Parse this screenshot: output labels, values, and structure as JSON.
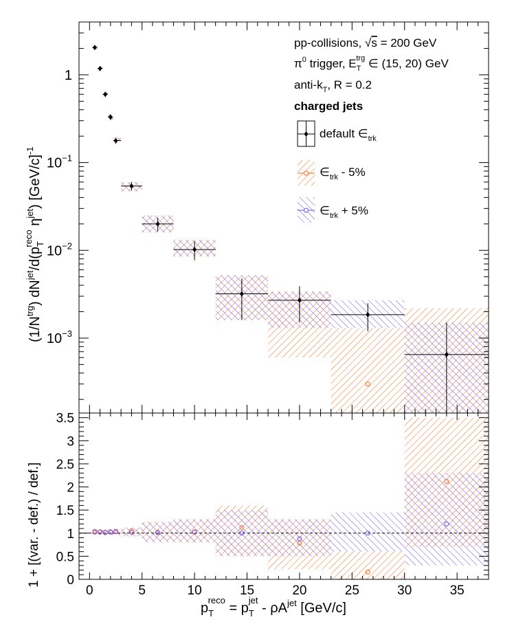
{
  "colors": {
    "default": "#000000",
    "minus": "#ff6a13",
    "plus": "#6a4cff"
  },
  "legend": {
    "line1_prefix": "pp-collisions, ",
    "line1_sqrt": "√",
    "line1_s": "s",
    "line1_suffix": " = 200 GeV",
    "line2_pi": "π",
    "line2_pi_sup": "0",
    "line2_mid": " trigger, E",
    "line2_sub": "T",
    "line2_sup": "trg",
    "line2_suffix": " ∈ (15, 20) GeV",
    "line3_prefix": "anti-k",
    "line3_sub": "T",
    "line3_suffix": ", R = 0.2",
    "line4": "charged jets",
    "entries": [
      {
        "name": "default ",
        "sym": "∈",
        "sub": "trk",
        "suffix": ""
      },
      {
        "name": "",
        "sym": "∈",
        "sub": "trk",
        "suffix": " - 5%"
      },
      {
        "name": "",
        "sym": "∈",
        "sub": "trk",
        "suffix": " + 5%"
      }
    ]
  },
  "labels": {
    "top_y": {
      "p1": "(1/N",
      "p1_sup": "trg",
      "p2": ") dN",
      "p2_sup": "jet",
      "p3": "/d(p",
      "p3_sub": "T",
      "p3_sup": "reco",
      "p4": " η",
      "p4_sup": "jet",
      "p5": ") [GeV/c]",
      "p5_sup": "-1"
    },
    "bottom_y": "1 + [(var. - def.) / def.]",
    "x": {
      "p1": "p",
      "p1_sub": "T",
      "p1_sup": "reco",
      "p2": " = p",
      "p2_sub": "T",
      "p2_sup": "jet",
      "p3": " - ρA",
      "p3_sup": "jet",
      "p4": " [GeV/c]"
    }
  },
  "chart_data": [
    {
      "type": "scatter",
      "panel": "top",
      "yscale": "log",
      "xlim": [
        -1,
        38
      ],
      "ylim": [
        0.00014,
        4
      ],
      "x_ticks": [
        0,
        5,
        10,
        15,
        20,
        25,
        30,
        35
      ],
      "y_tick_labels": [
        {
          "value": 1,
          "mant": "1",
          "exp": ""
        },
        {
          "value": 0.1,
          "mant": "10",
          "exp": "−1"
        },
        {
          "value": 0.01,
          "mant": "10",
          "exp": "−2"
        },
        {
          "value": 0.001,
          "mant": "10",
          "exp": "−3"
        }
      ],
      "bins": [
        {
          "x": 0.5,
          "xlo": 0.25,
          "xhi": 0.75,
          "y": 2.05,
          "yerr": 0.12,
          "minus": [
            1.95,
            2.15
          ],
          "plus": [
            1.95,
            2.15
          ]
        },
        {
          "x": 1.0,
          "xlo": 0.75,
          "xhi": 1.25,
          "y": 1.18,
          "yerr": 0.07,
          "minus": [
            1.12,
            1.24
          ],
          "plus": [
            1.12,
            1.24
          ]
        },
        {
          "x": 1.5,
          "xlo": 1.25,
          "xhi": 1.75,
          "y": 0.6,
          "yerr": 0.04,
          "minus": [
            0.57,
            0.63
          ],
          "plus": [
            0.57,
            0.63
          ]
        },
        {
          "x": 2.0,
          "xlo": 1.75,
          "xhi": 2.25,
          "y": 0.33,
          "yerr": 0.025,
          "minus": [
            0.31,
            0.35
          ],
          "plus": [
            0.31,
            0.35
          ]
        },
        {
          "x": 2.5,
          "xlo": 2.25,
          "xhi": 3.0,
          "y": 0.178,
          "yerr": 0.014,
          "minus": [
            0.165,
            0.195
          ],
          "plus": [
            0.165,
            0.195
          ]
        },
        {
          "x": 4.0,
          "xlo": 3.0,
          "xhi": 5.0,
          "y": 0.054,
          "yerr": 0.006,
          "minus": [
            0.047,
            0.06
          ],
          "plus": [
            0.047,
            0.06
          ]
        },
        {
          "x": 6.5,
          "xlo": 5.0,
          "xhi": 8.0,
          "y": 0.02,
          "yerr": 0.0035,
          "minus": [
            0.016,
            0.025
          ],
          "plus": [
            0.016,
            0.025
          ]
        },
        {
          "x": 10.0,
          "xlo": 8.0,
          "xhi": 12.0,
          "y": 0.0102,
          "yerr": 0.0025,
          "minus": [
            0.0085,
            0.0132
          ],
          "plus": [
            0.0085,
            0.0132
          ]
        },
        {
          "x": 14.5,
          "xlo": 12.0,
          "xhi": 17.0,
          "y": 0.0032,
          "yerr": 0.0016,
          "minus": [
            0.0016,
            0.0052
          ],
          "plus": [
            0.0016,
            0.0052
          ]
        },
        {
          "x": 20.0,
          "xlo": 17.0,
          "xhi": 23.0,
          "y": 0.0027,
          "yerr": 0.0012,
          "minus": [
            0.0006,
            0.0034
          ],
          "plus": [
            0.0013,
            0.0034
          ]
        },
        {
          "x": 26.5,
          "xlo": 23.0,
          "xhi": 30.0,
          "y": 0.00185,
          "yerr": 0.00065,
          "minus": [
            0.00014,
            0.0013
          ],
          "plus": [
            0.0013,
            0.0027
          ],
          "minus_marker": 0.0003
        },
        {
          "x": 34.0,
          "xlo": 30.0,
          "xhi": 38.0,
          "y": 0.00065,
          "yerr": 0.00085,
          "minus": [
            0.00014,
            0.0022
          ],
          "plus": [
            0.00014,
            0.0015
          ]
        }
      ]
    },
    {
      "type": "scatter",
      "panel": "bottom",
      "xlim": [
        -1,
        38
      ],
      "ylim": [
        0,
        3.6
      ],
      "x_ticks": [
        0,
        5,
        10,
        15,
        20,
        25,
        30,
        35
      ],
      "y_ticks": [
        0,
        0.5,
        1,
        1.5,
        2,
        2.5,
        3,
        3.5
      ],
      "y_tick_labels": [
        "0",
        "0.5",
        "1",
        "1.5",
        "2",
        "2.5",
        "3",
        "3.5"
      ],
      "reference_line": 1,
      "bins": [
        {
          "x": 0.5,
          "xlo": 0.25,
          "xhi": 0.75,
          "minus": 1.04,
          "plus": 1.02,
          "minus_band": [
            0.98,
            1.08
          ],
          "plus_band": [
            0.98,
            1.07
          ]
        },
        {
          "x": 1.0,
          "xlo": 0.75,
          "xhi": 1.25,
          "minus": 1.03,
          "plus": 1.02,
          "minus_band": [
            0.97,
            1.07
          ],
          "plus_band": [
            0.97,
            1.07
          ]
        },
        {
          "x": 1.5,
          "xlo": 1.25,
          "xhi": 1.75,
          "minus": 1.02,
          "plus": 1.01,
          "minus_band": [
            0.97,
            1.07
          ],
          "plus_band": [
            0.97,
            1.07
          ]
        },
        {
          "x": 2.0,
          "xlo": 1.75,
          "xhi": 2.25,
          "minus": 1.03,
          "plus": 1.02,
          "minus_band": [
            0.96,
            1.08
          ],
          "plus_band": [
            0.96,
            1.08
          ]
        },
        {
          "x": 2.5,
          "xlo": 2.25,
          "xhi": 3.0,
          "minus": 1.04,
          "plus": 1.03,
          "minus_band": [
            0.96,
            1.09
          ],
          "plus_band": [
            0.96,
            1.09
          ]
        },
        {
          "x": 4.0,
          "xlo": 3.0,
          "xhi": 5.0,
          "minus": 1.05,
          "plus": 1.02,
          "minus_band": [
            0.93,
            1.12
          ],
          "plus_band": [
            0.93,
            1.12
          ]
        },
        {
          "x": 6.5,
          "xlo": 5.0,
          "xhi": 8.0,
          "minus": 1.02,
          "plus": 1.01,
          "minus_band": [
            0.82,
            1.24
          ],
          "plus_band": [
            0.8,
            1.25
          ]
        },
        {
          "x": 10.0,
          "xlo": 8.0,
          "xhi": 12.0,
          "minus": 1.03,
          "plus": 1.02,
          "minus_band": [
            0.8,
            1.3
          ],
          "plus_band": [
            0.8,
            1.3
          ]
        },
        {
          "x": 14.5,
          "xlo": 12.0,
          "xhi": 17.0,
          "minus": 1.12,
          "plus": 1.0,
          "minus_band": [
            0.5,
            1.6
          ],
          "plus_band": [
            0.5,
            1.5
          ]
        },
        {
          "x": 20.0,
          "xlo": 17.0,
          "xhi": 23.0,
          "minus": 0.78,
          "plus": 0.88,
          "minus_band": [
            0.22,
            1.3
          ],
          "plus_band": [
            0.5,
            1.3
          ]
        },
        {
          "x": 26.5,
          "xlo": 23.0,
          "xhi": 30.0,
          "minus": 0.16,
          "plus": 1.0,
          "minus_band": [
            0.0,
            0.6
          ],
          "plus_band": [
            0.6,
            1.45
          ]
        },
        {
          "x": 34.0,
          "xlo": 30.0,
          "xhi": 38.0,
          "minus": 2.12,
          "plus": 1.2,
          "minus_band": [
            0.7,
            3.5
          ],
          "plus_band": [
            0.3,
            2.3
          ]
        }
      ]
    }
  ]
}
